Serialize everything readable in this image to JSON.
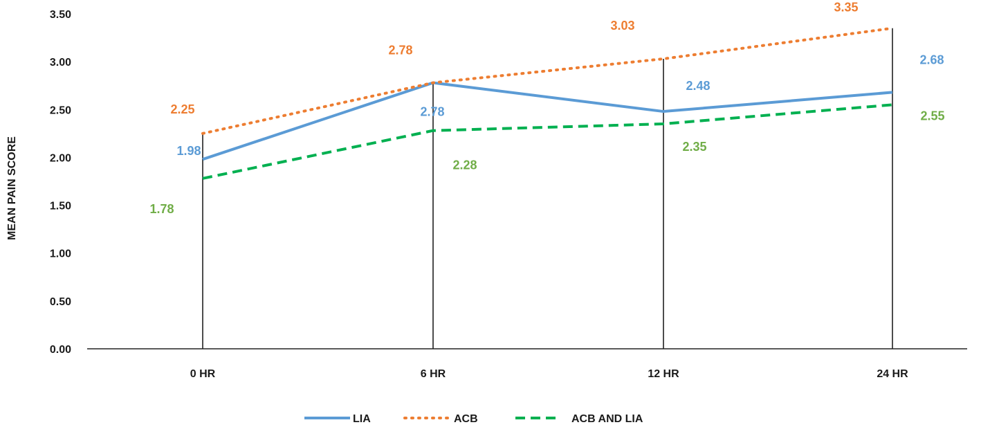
{
  "chart_data": {
    "type": "line",
    "title": "",
    "xlabel": "",
    "ylabel": "MEAN PAIN SCORE",
    "categories": [
      "0 HR",
      "6 HR",
      "12 HR",
      "24 HR"
    ],
    "ylim": [
      0,
      3.5
    ],
    "yticks": [
      "0.00",
      "0.50",
      "1.00",
      "1.50",
      "2.00",
      "2.50",
      "3.00",
      "3.50"
    ],
    "grid": false,
    "drop_lines": true,
    "legend_position": "bottom",
    "series": [
      {
        "name": "LIA",
        "values": [
          1.98,
          2.78,
          2.48,
          2.68
        ],
        "labels": [
          "1.98",
          "2.78",
          "2.48",
          "2.68"
        ],
        "color": "#5b9bd5",
        "style": "solid"
      },
      {
        "name": "ACB",
        "values": [
          2.25,
          2.78,
          3.03,
          3.35
        ],
        "labels": [
          "2.25",
          "2.78",
          "3.03",
          "3.35"
        ],
        "color": "#ed7d31",
        "style": "dotted"
      },
      {
        "name": "ACB AND LIA",
        "values": [
          1.78,
          2.28,
          2.35,
          2.55
        ],
        "labels": [
          "1.78",
          "2.28",
          "2.35",
          "2.55"
        ],
        "color": "#00b050",
        "label_color": "#70ad47",
        "style": "dashed"
      }
    ]
  }
}
